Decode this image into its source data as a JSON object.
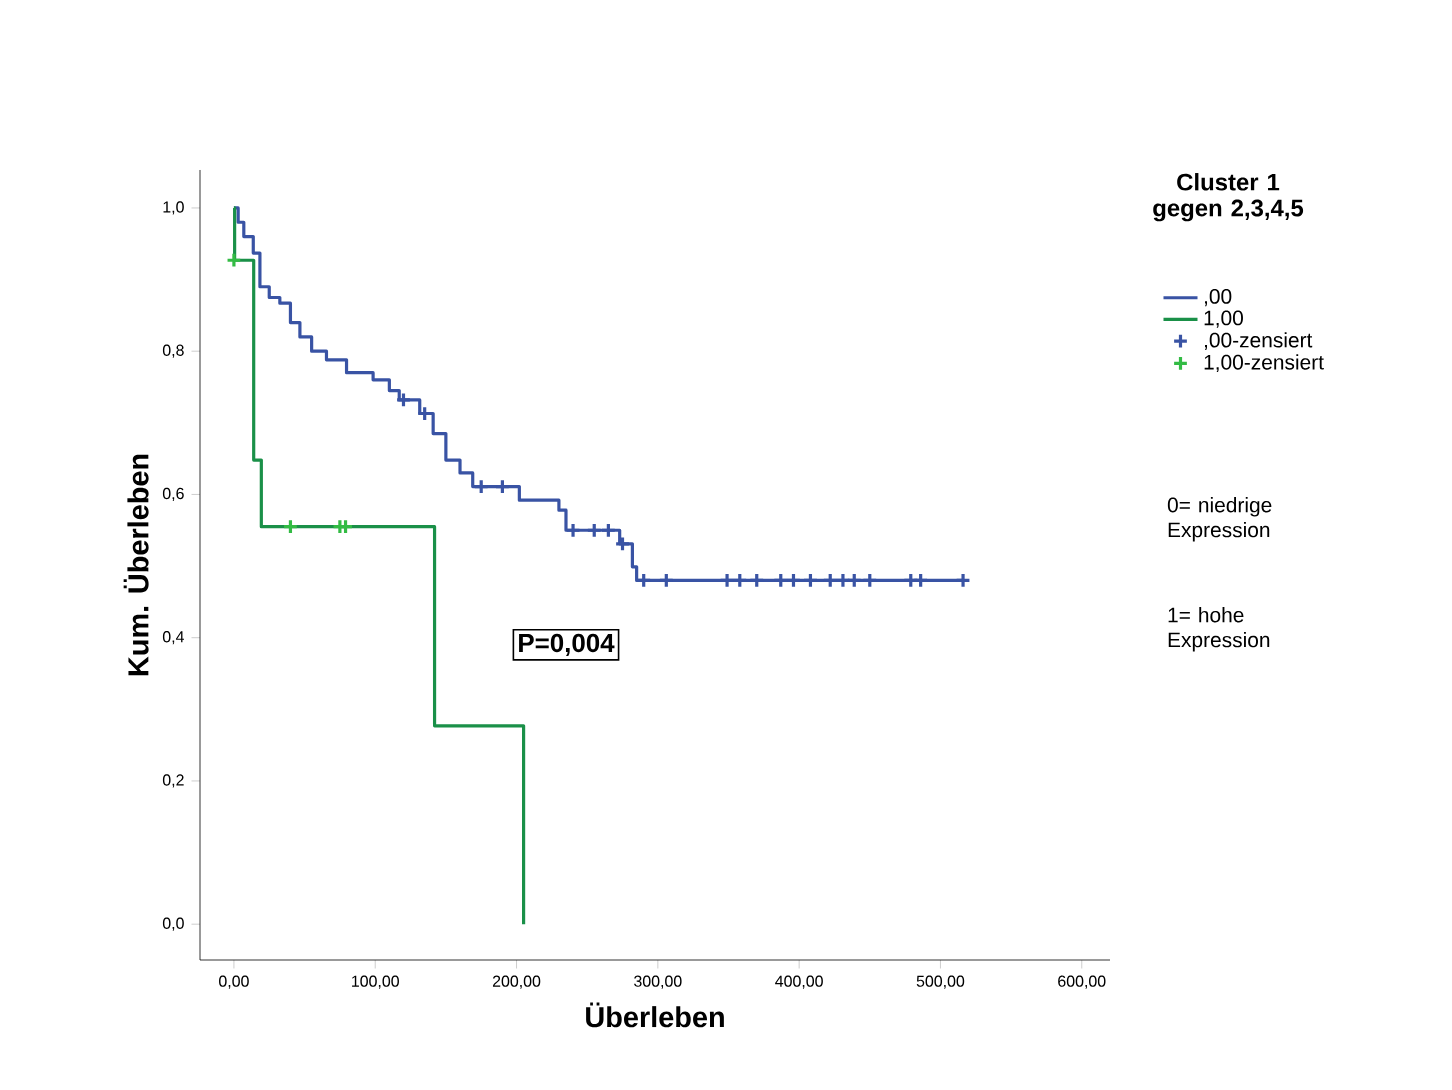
{
  "chart_data": {
    "type": "step",
    "xlabel": "Überleben",
    "ylabel": "Kum. Überleben",
    "legend_title": "Cluster 1 gegen 2,3,4,5",
    "legend": "right",
    "grid": false,
    "xlim": [
      -24,
      620
    ],
    "ylim": [
      -0.05,
      1.053
    ],
    "xticks": [
      {
        "value": 0,
        "label": "0,00"
      },
      {
        "value": 100,
        "label": "100,00"
      },
      {
        "value": 200,
        "label": "200,00"
      },
      {
        "value": 300,
        "label": "300,00"
      },
      {
        "value": 400,
        "label": "400,00"
      },
      {
        "value": 500,
        "label": "500,00"
      },
      {
        "value": 600,
        "label": "600,00"
      }
    ],
    "yticks": [
      {
        "value": 0,
        "label": "0,0"
      },
      {
        "value": 0.2,
        "label": "0,2"
      },
      {
        "value": 0.4,
        "label": "0,4"
      },
      {
        "value": 0.6,
        "label": "0,6"
      },
      {
        "value": 0.8,
        "label": "0,8"
      },
      {
        "value": 1.0,
        "label": "1,0"
      }
    ],
    "annotations": [
      "P=0,004",
      "0= niedrige Expression",
      "1= hohe Expression"
    ],
    "series": [
      {
        "name": ",00",
        "color": "#3953a4",
        "x": [
          0,
          3,
          7,
          13.7,
          18.4,
          25,
          32.5,
          40,
          46.7,
          55,
          65.5,
          79.7,
          98.5,
          110,
          117,
          131.5,
          141,
          150,
          160,
          169,
          202,
          230,
          235,
          273,
          282,
          285,
          516
        ],
        "values": [
          1.0,
          0.98,
          0.96,
          0.937,
          0.89,
          0.875,
          0.867,
          0.84,
          0.82,
          0.8,
          0.788,
          0.77,
          0.76,
          0.745,
          0.732,
          0.713,
          0.685,
          0.648,
          0.63,
          0.611,
          0.592,
          0.578,
          0.55,
          0.531,
          0.499,
          0.48,
          0.48
        ]
      },
      {
        "name": "1,00",
        "color": "#1a9048",
        "x": [
          0,
          0.5,
          14,
          19.4,
          142,
          205
        ],
        "values": [
          1.0,
          0.927,
          0.648,
          0.555,
          0.277,
          0.0
        ]
      },
      {
        "name": ",00-zensiert",
        "type": "scatter",
        "marker": "cross",
        "color": "#3953a4",
        "x": [
          120,
          135,
          175,
          190,
          240,
          255,
          265,
          275,
          290,
          306,
          349,
          358,
          370,
          387,
          396,
          408,
          422,
          431,
          439,
          450,
          479,
          486,
          516
        ],
        "values": [
          0.732,
          0.713,
          0.611,
          0.611,
          0.55,
          0.55,
          0.55,
          0.531,
          0.48,
          0.48,
          0.48,
          0.48,
          0.48,
          0.48,
          0.48,
          0.48,
          0.48,
          0.48,
          0.48,
          0.48,
          0.48,
          0.48,
          0.48
        ]
      },
      {
        "name": "1,00-zensiert",
        "type": "scatter",
        "marker": "cross",
        "color": "#33bb44",
        "x": [
          0,
          40,
          75,
          79
        ],
        "values": [
          0.927,
          0.555,
          0.555,
          0.555
        ]
      }
    ]
  }
}
